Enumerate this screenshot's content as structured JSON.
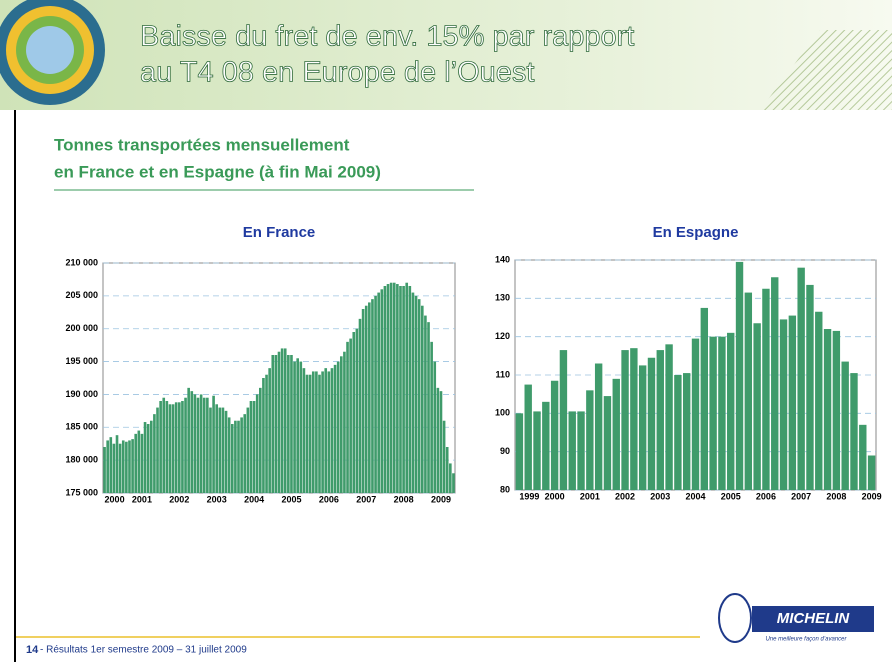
{
  "header": {
    "title": [
      "Baisse du fret de env. 15% par rapport",
      "au T4 08 en Europe de l’Ouest"
    ]
  },
  "subtitle": [
    "Tonnes transportées mensuellement",
    "en France et en Espagne (à fin Mai 2009)"
  ],
  "footer": {
    "page": "14",
    "text": "- Résultats 1er semestre  2009 – 31 juillet 2009"
  },
  "logo": {
    "brand": "MICHELIN",
    "tagline": "Une meilleure façon d’avancer"
  },
  "chart_data": [
    {
      "type": "bar",
      "title": "En France",
      "color": "#3f9b6b",
      "grid": true,
      "categories": [
        "2000",
        null,
        null,
        null,
        null,
        null,
        null,
        null,
        null,
        null,
        null,
        null,
        "2001",
        null,
        null,
        null,
        null,
        null,
        null,
        null,
        null,
        null,
        null,
        null,
        "2002",
        null,
        null,
        null,
        null,
        null,
        null,
        null,
        null,
        null,
        null,
        null,
        "2003",
        null,
        null,
        null,
        null,
        null,
        null,
        null,
        null,
        null,
        null,
        null,
        "2004",
        null,
        null,
        null,
        null,
        null,
        null,
        null,
        null,
        null,
        null,
        null,
        "2005",
        null,
        null,
        null,
        null,
        null,
        null,
        null,
        null,
        null,
        null,
        null,
        "2006",
        null,
        null,
        null,
        null,
        null,
        null,
        null,
        null,
        null,
        null,
        null,
        "2007",
        null,
        null,
        null,
        null,
        null,
        null,
        null,
        null,
        null,
        null,
        null,
        "2008",
        null,
        null,
        null,
        null,
        null,
        null,
        null,
        null,
        null,
        null,
        null,
        "2009",
        null,
        null,
        null,
        null
      ],
      "values": [
        182000,
        183000,
        183500,
        182500,
        183800,
        182500,
        183000,
        182800,
        183000,
        183200,
        184000,
        184500,
        184000,
        185800,
        185500,
        186000,
        187000,
        188000,
        189000,
        189500,
        189000,
        188500,
        188500,
        188800,
        188800,
        189000,
        189500,
        191000,
        190500,
        190000,
        189500,
        190000,
        189500,
        189500,
        188000,
        189800,
        188500,
        188000,
        188000,
        187500,
        186500,
        185500,
        186000,
        186000,
        186500,
        187000,
        188000,
        189000,
        189000,
        190000,
        191000,
        192500,
        193000,
        194000,
        196000,
        196000,
        196500,
        197000,
        197000,
        196000,
        196000,
        195000,
        195500,
        195000,
        194000,
        193000,
        193000,
        193500,
        193500,
        193000,
        193500,
        194000,
        193500,
        194000,
        194500,
        195000,
        195800,
        196500,
        198000,
        198500,
        199500,
        200000,
        201500,
        203000,
        203500,
        204000,
        204500,
        205000,
        205500,
        206000,
        206500,
        206800,
        207000,
        207000,
        206800,
        206500,
        206500,
        207000,
        206500,
        205500,
        205000,
        204500,
        203500,
        202000,
        201000,
        198000,
        195000,
        191000,
        190500,
        186000,
        182000,
        179500,
        178000
      ],
      "ylim": [
        175000,
        210000
      ],
      "yticks": [
        {
          "value": 175000,
          "label": "175 000"
        },
        {
          "value": 180000,
          "label": "180 000"
        },
        {
          "value": 185000,
          "label": "185 000"
        },
        {
          "value": 190000,
          "label": "190 000"
        },
        {
          "value": 195000,
          "label": "195 000"
        },
        {
          "value": 200000,
          "label": "200 000"
        },
        {
          "value": 205000,
          "label": "205 000"
        },
        {
          "value": 210000,
          "label": "210 000"
        }
      ]
    },
    {
      "type": "bar",
      "title": "En Espagne",
      "color": "#3f9b6b",
      "grid": true,
      "categories": [
        "1999",
        null,
        null,
        null,
        "2000",
        null,
        null,
        null,
        "2001",
        null,
        null,
        null,
        "2002",
        null,
        null,
        null,
        "2003",
        null,
        null,
        null,
        "2004",
        null,
        null,
        null,
        "2005",
        null,
        null,
        null,
        "2006",
        null,
        null,
        null,
        "2007",
        null,
        null,
        null,
        "2008",
        null,
        null,
        null,
        "2009"
      ],
      "values": [
        100,
        107.5,
        100.5,
        103,
        108.5,
        116.5,
        100.5,
        100.5,
        106,
        113,
        104.5,
        109,
        116.5,
        117,
        112.5,
        114.5,
        116.5,
        118,
        110,
        110.5,
        119.5,
        127.5,
        120,
        120,
        121,
        139.5,
        131.5,
        123.5,
        132.5,
        135.5,
        124.5,
        125.5,
        138,
        133.5,
        126.5,
        122,
        121.5,
        113.5,
        110.5,
        97,
        89
      ],
      "ylim": [
        80,
        140
      ],
      "yticks": [
        80,
        90,
        100,
        110,
        120,
        130,
        140
      ]
    }
  ]
}
